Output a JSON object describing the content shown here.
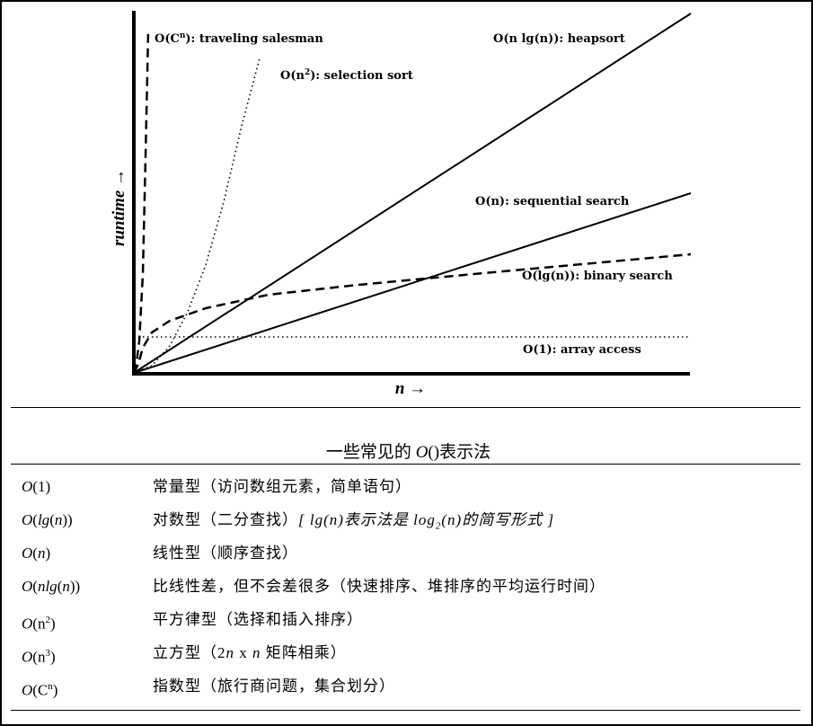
{
  "chart_data": {
    "type": "line",
    "xlabel": "n →",
    "ylabel": "runtime →",
    "grid": false,
    "series": [
      {
        "name": "O(Cⁿ): traveling salesman",
        "style": "dashed",
        "points": [
          [
            0,
            0
          ],
          [
            3,
            12
          ],
          [
            6,
            35
          ],
          [
            10,
            110
          ],
          [
            13,
            240
          ],
          [
            16,
            380
          ]
        ]
      },
      {
        "name": "O(n²): selection sort",
        "style": "dotted",
        "points": [
          [
            0,
            0
          ],
          [
            20,
            8
          ],
          [
            40,
            30
          ],
          [
            60,
            68
          ],
          [
            80,
            120
          ],
          [
            100,
            190
          ],
          [
            120,
            275
          ],
          [
            140,
            350
          ]
        ]
      },
      {
        "name": "O(n lg(n)): heapsort",
        "style": "solid",
        "points": [
          [
            0,
            0
          ],
          [
            620,
            400
          ]
        ]
      },
      {
        "name": "O(n): sequential search",
        "style": "solid",
        "points": [
          [
            0,
            0
          ],
          [
            620,
            200
          ]
        ]
      },
      {
        "name": "O(lg(n)): binary search",
        "style": "dashed",
        "points": [
          [
            0,
            0
          ],
          [
            5,
            10
          ],
          [
            10,
            28
          ],
          [
            20,
            45
          ],
          [
            40,
            58
          ],
          [
            80,
            72
          ],
          [
            150,
            87
          ],
          [
            250,
            98
          ],
          [
            400,
            112
          ],
          [
            620,
            132
          ]
        ]
      },
      {
        "name": "O(1): array access",
        "style": "dotted",
        "points": [
          [
            0,
            40
          ],
          [
            620,
            40
          ]
        ]
      }
    ],
    "labels": {
      "exp": {
        "b1": "O(C",
        "sup": "n",
        "b2": "): traveling salesman"
      },
      "sq": {
        "b1": "O(n",
        "sup": "2",
        "b2": "): selection sort"
      },
      "nlogn": "O(n lg(n)): heapsort",
      "n": "O(n): sequential search",
      "logn": "O(lg(n)): binary search",
      "const": "O(1): array access"
    },
    "colors": {
      "line": "#000000",
      "background": "#ffffff"
    }
  },
  "caption": {
    "pre": "一些常见的 ",
    "o": "O",
    "post": "()表示法"
  },
  "table": {
    "r1": {
      "c1_o": "O",
      "c1_rest": "(1)",
      "c2": "常量型（访问数组元素，简单语句）"
    },
    "r2": {
      "c1_o": "O",
      "c1_a": "(",
      "c1_b": "lg",
      "c1_c": "(",
      "c1_d": "n",
      "c1_e": "))",
      "c2_a": "对数型（二分查找）",
      "c2_b": "[ lg(n)表示法是 log",
      "c2_sub": "2",
      "c2_c": "(n)的简写形式 ]"
    },
    "r3": {
      "c1_o": "O",
      "c1_a": "(",
      "c1_b": "n",
      "c1_c": ")",
      "c2": "线性型（顺序查找）"
    },
    "r4": {
      "c1_o": "O",
      "c1_a": "(",
      "c1_b": "nlg",
      "c1_c": "(",
      "c1_d": "n",
      "c1_e": "))",
      "c2": "比线性差，但不会差很多（快速排序、堆排序的平均运行时间）"
    },
    "r5": {
      "c1_o": "O",
      "c1_a": "(n",
      "c1_sup": "2",
      "c1_b": ")",
      "c2": "平方律型（选择和插入排序）"
    },
    "r6": {
      "c1_o": "O",
      "c1_a": "(n",
      "c1_sup": "3",
      "c1_b": ")",
      "c2_a": "立方型（2",
      "c2_n1": "n",
      "c2_x": " x ",
      "c2_n2": "n",
      "c2_b": " 矩阵相乘）"
    },
    "r7": {
      "c1_o": "O",
      "c1_a": "(C",
      "c1_sup": "n",
      "c1_b": ")",
      "c2": "指数型（旅行商问题，集合划分）"
    }
  }
}
